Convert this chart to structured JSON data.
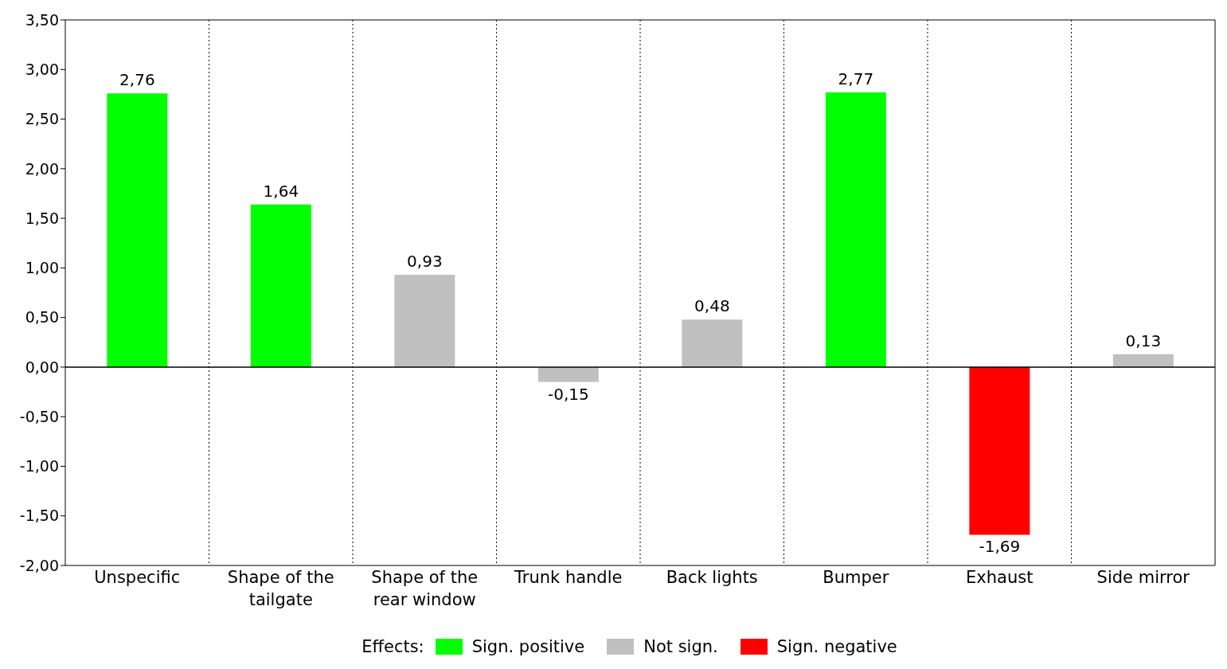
{
  "chart_data": {
    "type": "bar",
    "stacked": true,
    "categories": [
      "Unspecific",
      "Shape of the tailgate",
      "Shape of the rear window",
      "Trunk handle",
      "Back lights",
      "Bumper",
      "Exhaust",
      "Side mirror"
    ],
    "series": [
      {
        "name": "Sign. positive",
        "color": "#00ff00",
        "values": [
          2.76,
          1.64,
          null,
          null,
          null,
          2.77,
          null,
          null
        ],
        "value_labels": [
          "2,76",
          "1,64",
          null,
          null,
          null,
          "2,77",
          null,
          null
        ]
      },
      {
        "name": "Not sign.",
        "color": "#c0c0c0",
        "values": [
          null,
          null,
          0.93,
          -0.15,
          0.48,
          null,
          null,
          0.13
        ],
        "value_labels": [
          null,
          null,
          "0,93",
          "-0,15",
          "0,48",
          null,
          null,
          "0,13"
        ]
      },
      {
        "name": "Sign. negative",
        "color": "#ff0000",
        "values": [
          null,
          null,
          null,
          null,
          null,
          null,
          -1.69,
          null
        ],
        "value_labels": [
          null,
          null,
          null,
          null,
          null,
          null,
          "-1,69",
          null
        ]
      }
    ],
    "ylim": [
      -2,
      3.5
    ],
    "yticks": [
      {
        "value": -2,
        "label": "-2,00"
      },
      {
        "value": -1.5,
        "label": "-1,50"
      },
      {
        "value": -1,
        "label": "-1,00"
      },
      {
        "value": -0.5,
        "label": "-0,50"
      },
      {
        "value": 0,
        "label": "0,00"
      },
      {
        "value": 0.5,
        "label": "0,50"
      },
      {
        "value": 1,
        "label": "1,00"
      },
      {
        "value": 1.5,
        "label": "1,50"
      },
      {
        "value": 2,
        "label": "2,00"
      },
      {
        "value": 2.5,
        "label": "2,50"
      },
      {
        "value": 3,
        "label": "3,00"
      },
      {
        "value": 3.5,
        "label": "3,50"
      }
    ],
    "grid": "x",
    "legend": "bottom",
    "legend_title": "Effects:"
  }
}
